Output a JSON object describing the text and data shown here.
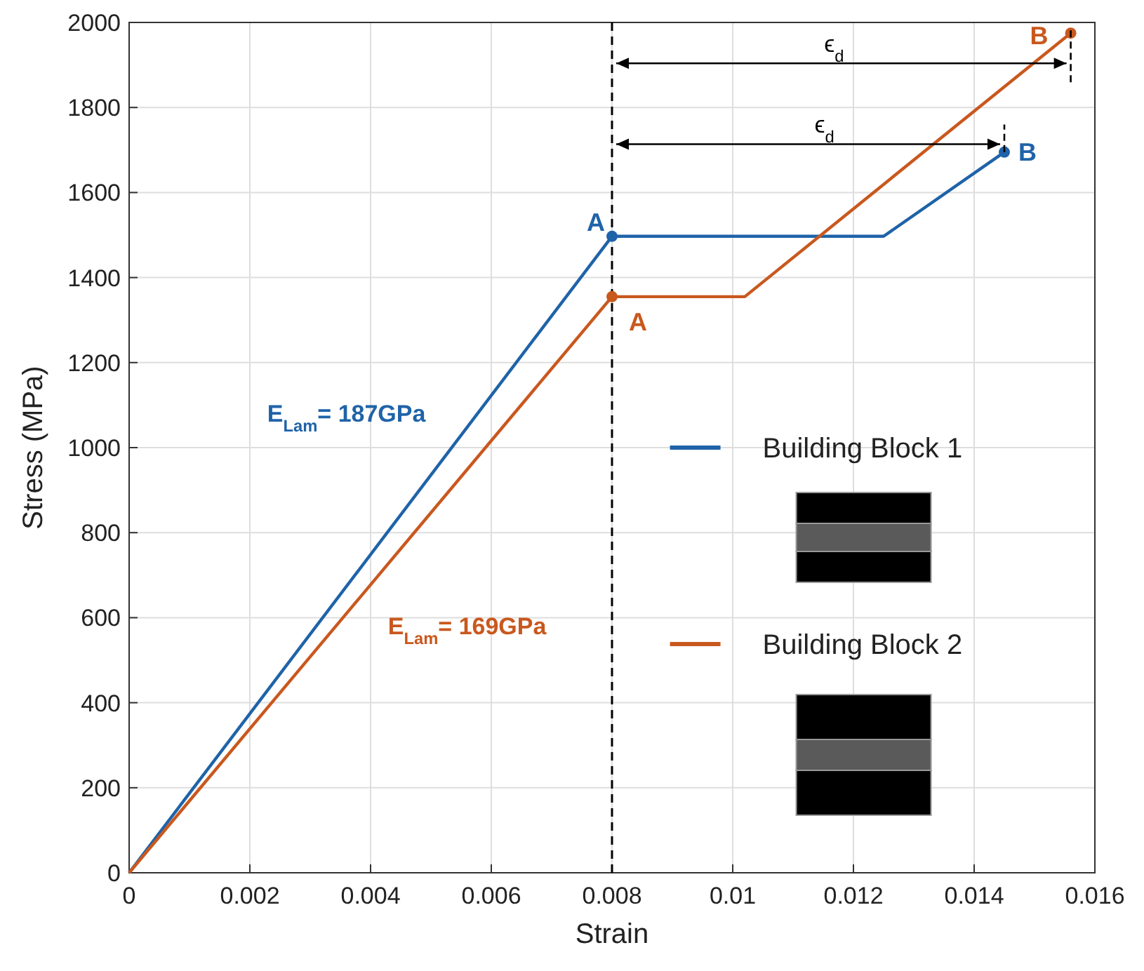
{
  "chart_data": {
    "type": "line",
    "xlabel": "Strain",
    "ylabel": "Stress (MPa)",
    "xlim": [
      0,
      0.016
    ],
    "ylim": [
      0,
      2000
    ],
    "xticks": [
      0,
      0.002,
      0.004,
      0.006,
      0.008,
      0.01,
      0.012,
      0.014,
      0.016
    ],
    "yticks": [
      0,
      200,
      400,
      600,
      800,
      1000,
      1200,
      1400,
      1600,
      1800,
      2000
    ],
    "grid": true,
    "legend": "right",
    "marker": "circle",
    "line_style": "solid",
    "series": [
      {
        "name": "Building Block 1",
        "color": "#1f63a8",
        "x": [
          0,
          0.008,
          0.0125,
          0.0145
        ],
        "values": [
          0,
          1497,
          1497,
          1695
        ]
      },
      {
        "name": "Building Block 2",
        "color": "#c9581e",
        "x": [
          0,
          0.008,
          0.0102,
          0.0156
        ],
        "values": [
          0,
          1355,
          1355,
          1975
        ]
      }
    ],
    "ref_lines": [
      {
        "axis": "x",
        "value": 0.008,
        "label": null,
        "line_style": "dashed",
        "color": "#000000"
      }
    ],
    "annotations": [
      {
        "text": "A",
        "x": 0.008,
        "y": 1497
      },
      {
        "text": "B",
        "x": 0.0145,
        "y": 1695
      },
      {
        "text": "A",
        "x": 0.008,
        "y": 1355
      },
      {
        "text": "B",
        "x": 0.0156,
        "y": 1975
      },
      "E$_{Lam}$= 187GPa",
      "E$_{Lam}$= 169GPa",
      "ϵ$_{d}$",
      "ϵ$_{d}$"
    ]
  }
}
